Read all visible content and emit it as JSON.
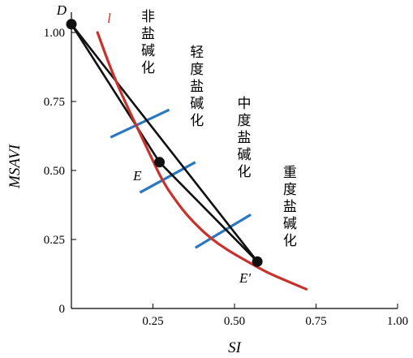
{
  "chart_data": {
    "type": "line",
    "xlabel": "SI",
    "ylabel": "MSAVI",
    "xlim": [
      0,
      1.0
    ],
    "ylim": [
      0,
      1.05
    ],
    "x_ticks": [
      {
        "value": 0.25,
        "label": "0.25"
      },
      {
        "value": 0.5,
        "label": "0.50"
      },
      {
        "value": 0.75,
        "label": "0.75"
      },
      {
        "value": 1.0,
        "label": "1.00"
      }
    ],
    "y_ticks": [
      {
        "value": 0,
        "label": "0"
      },
      {
        "value": 0.25,
        "label": "0.25"
      },
      {
        "value": 0.5,
        "label": "0.50"
      },
      {
        "value": 0.75,
        "label": "0.75"
      },
      {
        "value": 1.0,
        "label": "1.00"
      }
    ],
    "grid": false,
    "curve": {
      "name": "l",
      "color": "#c8322c",
      "x": [
        0.08,
        0.12,
        0.16,
        0.2,
        0.24,
        0.28,
        0.32,
        0.36,
        0.42,
        0.48,
        0.54,
        0.6,
        0.66,
        0.72
      ],
      "y": [
        1.0,
        0.87,
        0.76,
        0.66,
        0.56,
        0.46,
        0.39,
        0.33,
        0.26,
        0.21,
        0.17,
        0.13,
        0.1,
        0.07
      ]
    },
    "points": [
      {
        "label": "D",
        "x": 0.0,
        "y": 1.03
      },
      {
        "label": "E",
        "x": 0.27,
        "y": 0.53
      },
      {
        "label": "E′",
        "x": 0.57,
        "y": 0.17
      }
    ],
    "black_lines": [
      {
        "from": "D",
        "to": "E"
      },
      {
        "from": "E",
        "to": "E′"
      },
      {
        "from": "D",
        "to": "E′"
      }
    ],
    "boundary_lines": {
      "color": "#2a78c0",
      "segments": [
        {
          "x": [
            0.12,
            0.3
          ],
          "y": [
            0.62,
            0.72
          ]
        },
        {
          "x": [
            0.21,
            0.38
          ],
          "y": [
            0.42,
            0.53
          ]
        },
        {
          "x": [
            0.38,
            0.55
          ],
          "y": [
            0.22,
            0.34
          ]
        }
      ]
    },
    "zone_labels": [
      {
        "text": "非盐碱化",
        "x": 0.235,
        "y": 1.08
      },
      {
        "text": "轻度盐碱化",
        "x": 0.385,
        "y": 0.94
      },
      {
        "text": "中度盐碱化",
        "x": 0.53,
        "y": 0.74
      },
      {
        "text": "重度盐碱化",
        "x": 0.67,
        "y": 0.47
      }
    ]
  }
}
